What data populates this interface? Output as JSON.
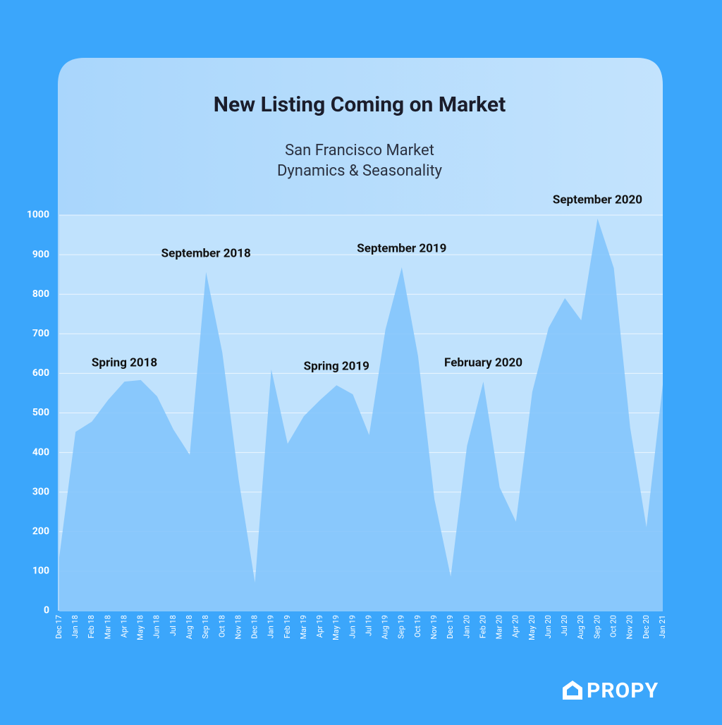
{
  "chart_data": {
    "type": "area",
    "title": "New Listing Coming on Market",
    "subtitle": [
      "San Francisco Market",
      "Dynamics & Seasonality"
    ],
    "categories": [
      "Dec 17",
      "Jan 18",
      "Feb 18",
      "Mar 18",
      "Apr 18",
      "May 18",
      "Jun 18",
      "Jul 18",
      "Aug 18",
      "Sep 18",
      "Oct 18",
      "Nov 18",
      "Dec 18",
      "Jan 19",
      "Feb 19",
      "Mar 19",
      "Apr 19",
      "May 19",
      "Jun 19",
      "Jul 19",
      "Aug 19",
      "Sep 19",
      "Oct 19",
      "Nov 19",
      "Dec 19",
      "Jan 20",
      "Feb 20",
      "Mar 20",
      "Apr 20",
      "May 20",
      "Jun 20",
      "Jul 20",
      "Aug 20",
      "Sep 20",
      "Oct 20",
      "Nov 20",
      "Dec 20",
      "Jan 21"
    ],
    "values": [
      135,
      452,
      478,
      533,
      579,
      583,
      542,
      458,
      394,
      856,
      652,
      332,
      71,
      610,
      422,
      492,
      533,
      570,
      547,
      444,
      711,
      868,
      643,
      282,
      86,
      417,
      579,
      312,
      225,
      553,
      715,
      790,
      734,
      991,
      866,
      463,
      211,
      572
    ],
    "color": "#7fc3fb",
    "ylim": [
      0,
      1000
    ],
    "yticks": [
      0,
      100,
      200,
      300,
      400,
      500,
      600,
      700,
      800,
      900,
      1000
    ],
    "grid": true,
    "annotations": [
      {
        "text": "Spring 2018",
        "x": "Apr 18"
      },
      {
        "text": "September 2018",
        "x": "Sep 18"
      },
      {
        "text": "Spring 2019",
        "x": "May 19"
      },
      {
        "text": "September 2019",
        "x": "Sep 19"
      },
      {
        "text": "February 2020",
        "x": "Feb 20"
      },
      {
        "text": "September 2020",
        "x": "Sep 20"
      }
    ]
  },
  "brand": "PROPY"
}
